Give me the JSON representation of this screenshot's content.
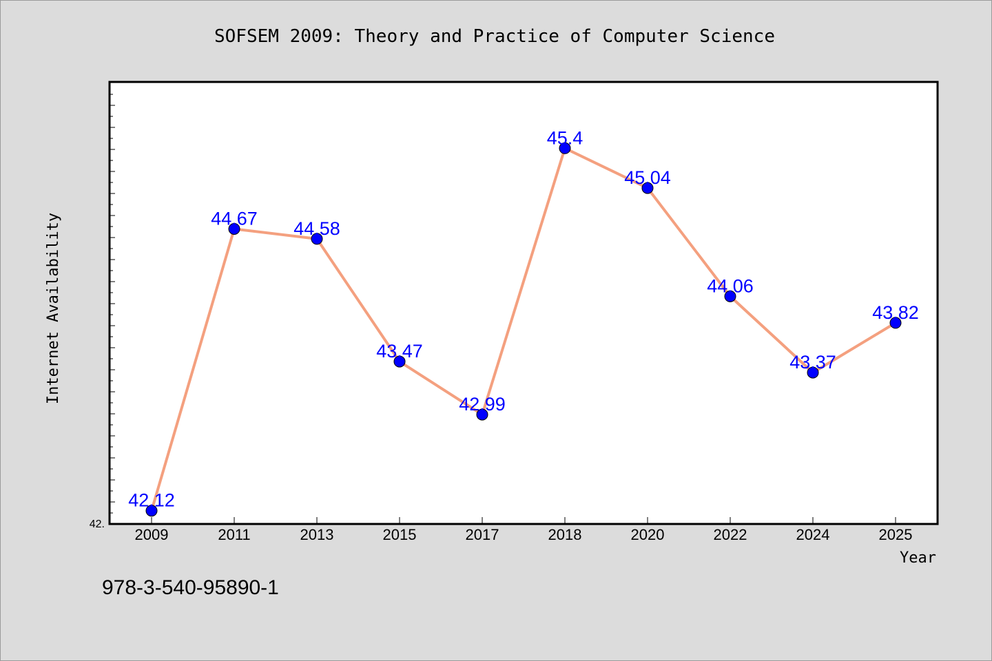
{
  "chart_data": {
    "type": "line",
    "title": "SOFSEM 2009: Theory and Practice of Computer Science",
    "xlabel": "Year",
    "ylabel": "Internet Availability",
    "categories": [
      "2009",
      "2011",
      "2013",
      "2015",
      "2017",
      "2018",
      "2020",
      "2022",
      "2024",
      "2025"
    ],
    "series": [
      {
        "values": [
          42.12,
          44.67,
          44.58,
          43.47,
          42.99,
          45.4,
          45.04,
          44.06,
          43.37,
          43.82
        ]
      }
    ],
    "y_min_tick_label": "42.",
    "ylim": [
      42.0,
      46.0
    ],
    "grid": false,
    "legend": "none",
    "colors": {
      "line": "#f4a07f",
      "marker": "#0000ff",
      "data_label": "#0000ff",
      "background": "#dcdcdc",
      "plot_area": "#ffffff"
    }
  },
  "footer": {
    "isbn": "978-3-540-95890-1"
  }
}
